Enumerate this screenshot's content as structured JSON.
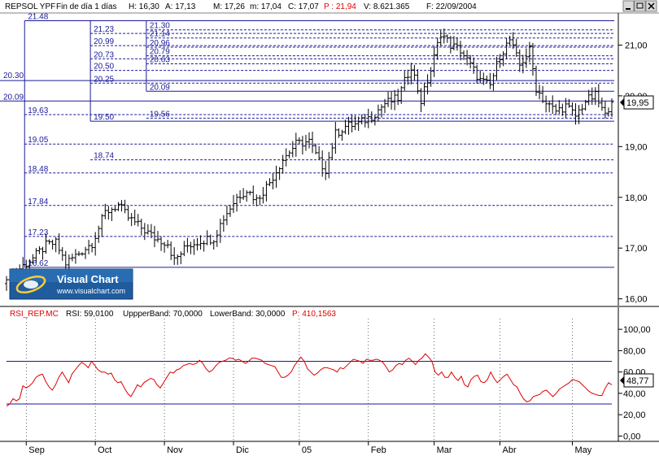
{
  "header": {
    "symbol": "REPSOL YPF",
    "period": "Fin de día 1 días",
    "h_label": "H: 16,30",
    "a_label": "A: 17,13",
    "m_label": "M: 17,26",
    "min_label": "m: 17,04",
    "c_label": "C: 17,07",
    "p_label": "P : 21,94",
    "v_label": "V: 8.621.365",
    "f_label": "F: 22/09/2004"
  },
  "rsi_header": {
    "name": "RSI_REP.MC",
    "value_label": "RSI: 59,0100",
    "upper_label": "UppperBand: 70,0000",
    "lower_label": "LowerBand: 30,0000",
    "p_label": "P: 410,1563"
  },
  "logo": {
    "title": "Visual Chart",
    "url": "www.visualchart.com"
  },
  "current_price_label": "19,95",
  "current_rsi_label": "48,77",
  "colors": {
    "fib_line": "#1a1a9a",
    "rsi_line": "#e00000",
    "bars": "#000000",
    "header_red": "#e00000",
    "axis_bg": "#ffffff",
    "logo_bg": "#1f5c9e"
  },
  "chart_data": [
    {
      "type": "bar",
      "subtype": "ohlc",
      "title": "REPSOL YPF",
      "ylim": [
        15.85,
        21.6
      ],
      "y_ticks": [
        "16,00",
        "17,00",
        "18,00",
        "19,00",
        "20,00",
        "21,00"
      ],
      "y_tick_values": [
        16,
        17,
        18,
        19,
        20,
        21
      ],
      "x_tick_labels": [
        "Sep",
        "Oct",
        "Nov",
        "Dic",
        "05",
        "Feb",
        "Mar",
        "Abr",
        "May"
      ],
      "x_tick_index": [
        6,
        27,
        48,
        69,
        89,
        110,
        130,
        150,
        172
      ],
      "num_bars": 185,
      "close_path": [
        [
          0,
          16.3
        ],
        [
          4,
          16.6
        ],
        [
          8,
          16.8
        ],
        [
          12,
          17.05
        ],
        [
          15,
          17.1
        ],
        [
          18,
          16.7
        ],
        [
          22,
          16.9
        ],
        [
          26,
          17.1
        ],
        [
          30,
          17.7
        ],
        [
          34,
          17.85
        ],
        [
          37,
          17.6
        ],
        [
          41,
          17.4
        ],
        [
          45,
          17.2
        ],
        [
          49,
          17.1
        ],
        [
          51,
          16.75
        ],
        [
          55,
          17.05
        ],
        [
          59,
          17.15
        ],
        [
          63,
          17.2
        ],
        [
          66,
          17.6
        ],
        [
          70,
          18.0
        ],
        [
          73,
          18.15
        ],
        [
          76,
          17.95
        ],
        [
          80,
          18.3
        ],
        [
          84,
          18.75
        ],
        [
          88,
          19.05
        ],
        [
          92,
          19.1
        ],
        [
          95,
          18.7
        ],
        [
          97,
          18.55
        ],
        [
          100,
          19.25
        ],
        [
          103,
          19.4
        ],
        [
          107,
          19.45
        ],
        [
          111,
          19.6
        ],
        [
          115,
          19.85
        ],
        [
          119,
          19.95
        ],
        [
          123,
          20.6
        ],
        [
          126,
          19.9
        ],
        [
          129,
          20.5
        ],
        [
          132,
          21.25
        ],
        [
          135,
          21.0
        ],
        [
          138,
          20.9
        ],
        [
          141,
          20.6
        ],
        [
          144,
          20.3
        ],
        [
          147,
          20.2
        ],
        [
          150,
          20.8
        ],
        [
          153,
          21.1
        ],
        [
          156,
          20.6
        ],
        [
          159,
          20.9
        ],
        [
          161,
          20.15
        ],
        [
          164,
          19.85
        ],
        [
          167,
          19.7
        ],
        [
          170,
          19.8
        ],
        [
          173,
          19.6
        ],
        [
          176,
          19.9
        ],
        [
          179,
          20.0
        ],
        [
          182,
          19.6
        ],
        [
          184,
          19.95
        ]
      ],
      "fibonacci_levels": [
        21.48,
        21.3,
        21.23,
        21.14,
        20.99,
        20.96,
        20.79,
        20.73,
        20.63,
        20.5,
        20.3,
        20.25,
        20.09,
        19.63,
        19.56,
        19.5,
        19.05,
        18.74,
        18.48,
        17.84,
        17.23,
        16.62
      ],
      "last_close": 19.95
    },
    {
      "type": "line",
      "title": "RSI_REP.MC",
      "ylim": [
        -5,
        110
      ],
      "y_ticks": [
        "0,00",
        "20,00",
        "40,00",
        "60,00",
        "80,00",
        "100,00"
      ],
      "y_tick_values": [
        0,
        20,
        40,
        60,
        80,
        100
      ],
      "bands": {
        "upper": 70,
        "lower": 30
      },
      "series": [
        {
          "name": "RSI_REP.MC",
          "values": [
            28,
            30,
            35,
            33,
            35,
            47,
            45,
            47,
            50,
            55,
            57,
            58,
            51,
            46,
            43,
            48,
            55,
            60,
            55,
            50,
            58,
            62,
            66,
            69,
            67,
            64,
            70,
            66,
            62,
            60,
            60,
            58,
            59,
            53,
            50,
            51,
            45,
            40,
            37,
            42,
            48,
            46,
            50,
            52,
            54,
            53,
            48,
            45,
            50,
            55,
            60,
            59,
            62,
            63,
            66,
            67,
            68,
            67,
            68,
            71,
            68,
            63,
            60,
            62,
            66,
            69,
            70,
            71,
            73,
            73,
            71,
            72,
            70,
            68,
            70,
            73,
            73,
            72,
            71,
            68,
            67,
            66,
            65,
            60,
            55,
            55,
            57,
            60,
            66,
            70,
            74,
            70,
            63,
            60,
            57,
            59,
            62,
            64,
            64,
            63,
            62,
            60,
            64,
            63,
            66,
            69,
            72,
            71,
            70,
            68,
            72,
            71,
            71,
            72,
            71,
            69,
            65,
            60,
            62,
            66,
            68,
            67,
            71,
            73,
            70,
            67,
            71,
            73,
            77,
            74,
            70,
            60,
            57,
            60,
            55,
            55,
            60,
            55,
            52,
            56,
            48,
            46,
            53,
            56,
            57,
            51,
            50,
            53,
            60,
            54,
            50,
            53,
            56,
            58,
            53,
            48,
            46,
            40,
            35,
            32,
            33,
            37,
            38,
            39,
            42,
            43,
            40,
            37,
            40,
            44,
            46,
            48,
            50,
            53,
            52,
            51,
            48,
            45,
            42,
            40,
            39,
            38,
            38,
            45,
            50,
            48
          ]
        }
      ],
      "last_value": 48.77
    }
  ]
}
